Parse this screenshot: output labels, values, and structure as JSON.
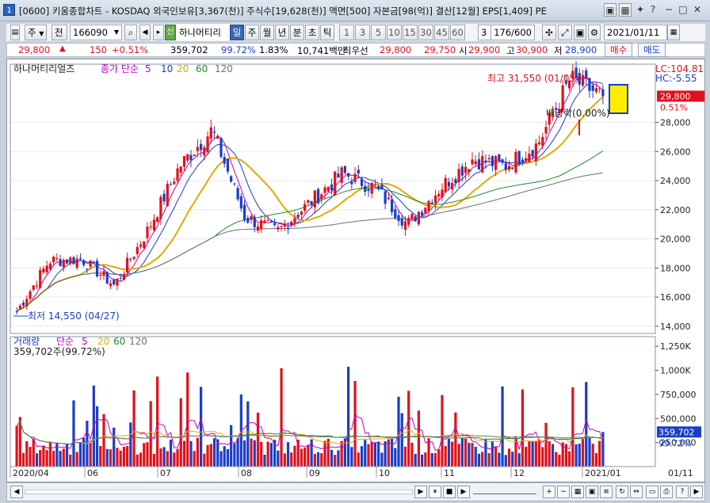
{
  "window": {
    "icon_label": "1",
    "title": "[0600] 키움종합차트 - KOSDAQ 외국인보유[3,367(천)] 주식수[19,628(천)] 액면[500] 자본금[98(억)] 결산[12월] EPS[1,409] PE"
  },
  "toolbar": {
    "market": "주",
    "prev": "전",
    "code": "166090",
    "market_badge": "신",
    "stock_name": "하나머티리",
    "periods": [
      "일",
      "주",
      "월",
      "년",
      "분",
      "초",
      "틱"
    ],
    "active_period": "일",
    "intervals": [
      "1",
      "3",
      "5",
      "10",
      "15",
      "30",
      "45",
      "60"
    ],
    "interval_value": "3",
    "count": "176/600",
    "date": "2021/01/11"
  },
  "pricebar": {
    "price": "29,800",
    "arrow": "▲",
    "change": "150",
    "change_pct": "+0.51%",
    "volume": "359,702",
    "volume_ratio": "99.72%",
    "turnover": "1.83%",
    "amount": "10,741백만",
    "best_ask_label": "최우선",
    "best_ask": "29,800",
    "best_bid": "29,750",
    "open_label": "시",
    "open": "29,900",
    "high_label": "고",
    "high": "30,900",
    "low_label": "저",
    "low": "28,900",
    "buy_label": "매수",
    "sell_label": "매도"
  },
  "price_panel": {
    "stock_label": "하나머티리얼즈",
    "ma_title": "종가 단순",
    "ma_periods": [
      "5",
      "10",
      "20",
      "60",
      "120"
    ],
    "ma_colors": [
      "#c000c0",
      "#1a3ec8",
      "#e8a800",
      "#1e8c28",
      "#707070"
    ],
    "lc_label": "LC:104.81",
    "hc_label": "HC:-5.55",
    "current_price": "29,800",
    "current_pct": "0.51%",
    "high_annotation": "최고 31,550 (01/05)",
    "low_annotation": "최저 14,550 (04/27)",
    "dividend_annotation": "배당락(0.00%)",
    "y_ticks": [
      "28,000",
      "26,000",
      "24,000",
      "22,000",
      "20,000",
      "18,000",
      "16,000",
      "14,000"
    ]
  },
  "volume_panel": {
    "title": "거래량",
    "ma_title": "단순",
    "ma_periods": [
      "5",
      "20",
      "60",
      "120"
    ],
    "ma_colors": [
      "#c000c0",
      "#e8a800",
      "#1e8c28",
      "#707070"
    ],
    "summary": "359,702주(99.72%)",
    "y_ticks": [
      "1,250K",
      "1,000K",
      "750,000",
      "500,000",
      "250,000"
    ],
    "current_volume": "359,702",
    "current_ratio": "99.72%"
  },
  "x_axis": {
    "labels": [
      "2020/04",
      "06",
      "07",
      "08",
      "09",
      "10",
      "11",
      "12",
      "2021/01"
    ],
    "right_label": "01/11"
  },
  "chart_data": {
    "type": "candlestick",
    "series": [
      {
        "name": "종가",
        "x": [
          "2020/04/27",
          "2020/05/15",
          "2020/06/01",
          "2020/06/15",
          "2020/07/01",
          "2020/07/20",
          "2020/08/05",
          "2020/08/20",
          "2020/09/01",
          "2020/09/15",
          "2020/10/01",
          "2020/10/15",
          "2020/11/02",
          "2020/11/16",
          "2020/12/01",
          "2020/12/15",
          "2020/12/29",
          "2021/01/05",
          "2021/01/11"
        ],
        "values": [
          15000,
          18500,
          18600,
          16800,
          20500,
          25000,
          27500,
          21500,
          20500,
          22500,
          24500,
          23500,
          21000,
          23500,
          25500,
          25000,
          26500,
          31000,
          29800
        ]
      }
    ],
    "ylim": [
      13500,
      32000
    ],
    "volume_ylim": [
      0,
      1350000
    ]
  }
}
